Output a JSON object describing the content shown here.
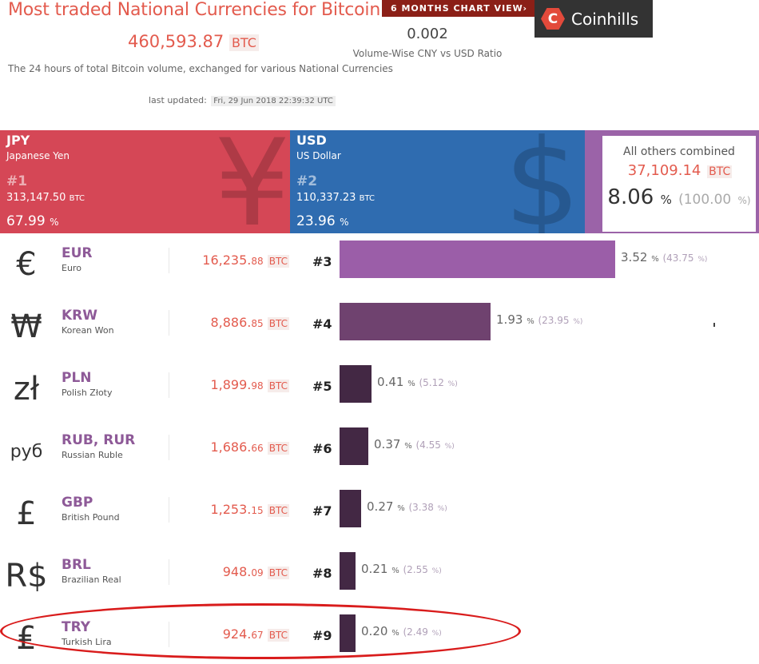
{
  "header": {
    "title": "Most traded National Currencies for Bitcoin",
    "chart_button": "6 MONTHS CHART VIEW",
    "chart_button_arrow": "›",
    "logo_letter": "C",
    "logo_text": "Coinhills",
    "total_value": "460,593.87",
    "total_unit": "BTC",
    "ratio_value": "0.002",
    "ratio_label": "Volume-Wise CNY vs USD Ratio",
    "subtitle": "The 24 hours of total Bitcoin volume, exchanged for various National Currencies",
    "updated_label": "last updated:",
    "updated_value": "Fri, 29 Jun 2018 22:39:32 UTC"
  },
  "top_cards": [
    {
      "code": "JPY",
      "name": "Japanese Yen",
      "rank": "#1",
      "volume": "313,147.50",
      "unit": "BTC",
      "percent": "67.99",
      "percent_unit": "%",
      "symbol": "¥",
      "color": "#d54756"
    },
    {
      "code": "USD",
      "name": "US Dollar",
      "rank": "#2",
      "volume": "110,337.23",
      "unit": "BTC",
      "percent": "23.96",
      "percent_unit": "%",
      "symbol": "$",
      "color": "#2f6cb0"
    }
  ],
  "others": {
    "label": "All others combined",
    "btc": "37,109.14",
    "unit": "BTC",
    "percent": "8.06",
    "percent_unit": "%",
    "share": "(100.00",
    "share_unit": "%)"
  },
  "currencies": [
    {
      "symbol": "€",
      "code": "EUR",
      "name": "Euro",
      "btc_int": "16,235.",
      "btc_dec": "88",
      "unit": "BTC",
      "rank": "#3",
      "pct_int": "3.",
      "pct_dec": "52",
      "pct_unit": "%",
      "sub": "(43.75",
      "sub_unit": "%)",
      "share": 0.4375,
      "bar_color": "#9b5ea8"
    },
    {
      "symbol": "₩",
      "code": "KRW",
      "name": "Korean Won",
      "btc_int": "8,886.",
      "btc_dec": "85",
      "unit": "BTC",
      "rank": "#4",
      "pct_int": "1.",
      "pct_dec": "93",
      "pct_unit": "%",
      "sub": "(23.95",
      "sub_unit": "%)",
      "share": 0.2395,
      "bar_color": "#6f426f"
    },
    {
      "symbol": "zł",
      "code": "PLN",
      "name": "Polish Złoty",
      "btc_int": "1,899.",
      "btc_dec": "98",
      "unit": "BTC",
      "rank": "#5",
      "pct_int": "0.",
      "pct_dec": "41",
      "pct_unit": "%",
      "sub": "(5.12",
      "sub_unit": "%)",
      "share": 0.0512,
      "bar_color": "#432844"
    },
    {
      "symbol": "руб",
      "code": "RUB, RUR",
      "name": "Russian Ruble",
      "btc_int": "1,686.",
      "btc_dec": "66",
      "unit": "BTC",
      "rank": "#6",
      "pct_int": "0.",
      "pct_dec": "37",
      "pct_unit": "%",
      "sub": "(4.55",
      "sub_unit": "%)",
      "share": 0.0455,
      "bar_color": "#432844"
    },
    {
      "symbol": "£",
      "code": "GBP",
      "name": "British Pound",
      "btc_int": "1,253.",
      "btc_dec": "15",
      "unit": "BTC",
      "rank": "#7",
      "pct_int": "0.",
      "pct_dec": "27",
      "pct_unit": "%",
      "sub": "(3.38",
      "sub_unit": "%)",
      "share": 0.0338,
      "bar_color": "#432844"
    },
    {
      "symbol": "R$",
      "code": "BRL",
      "name": "Brazilian Real",
      "btc_int": "948.",
      "btc_dec": "09",
      "unit": "BTC",
      "rank": "#8",
      "pct_int": "0.",
      "pct_dec": "21",
      "pct_unit": "%",
      "sub": "(2.55",
      "sub_unit": "%)",
      "share": 0.0255,
      "bar_color": "#432844"
    },
    {
      "symbol": "₤",
      "code": "TRY",
      "name": "Turkish Lira",
      "btc_int": "924.",
      "btc_dec": "67",
      "unit": "BTC",
      "rank": "#9",
      "pct_int": "0.",
      "pct_dec": "20",
      "pct_unit": "%",
      "sub": "(2.49",
      "sub_unit": "%)",
      "share": 0.0249,
      "bar_color": "#432844"
    }
  ]
}
